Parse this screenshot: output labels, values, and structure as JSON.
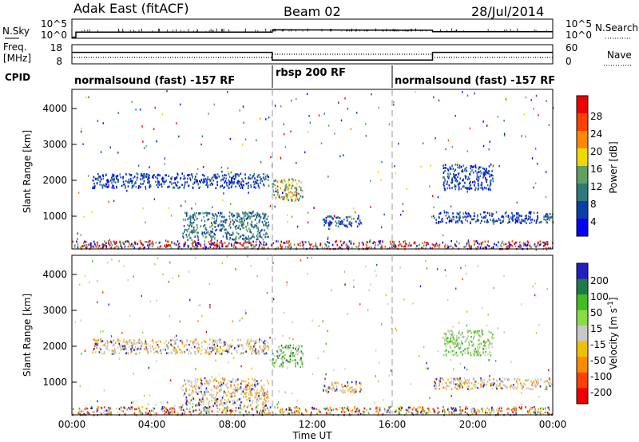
{
  "header": {
    "station": "Adak East (fitACF)",
    "beam": "Beam 02",
    "date": "28/Jul/2014"
  },
  "chart_data": [
    {
      "type": "line",
      "panel": "noise",
      "left_label": "N.Sky",
      "right_label": "N.Search",
      "left_ticks": [
        "10^5",
        "10^0"
      ],
      "right_ticks": [
        "10^5",
        "10^0"
      ],
      "y_scale": "log",
      "description_series": [
        {
          "x_hours": [
            0.0,
            0.2,
            0.2,
            10.0,
            10.0,
            18.0,
            18.0,
            24.0
          ],
          "log10_value": [
            0.3,
            0.3,
            1.6,
            1.6,
            2.2,
            2.1,
            1.7,
            1.7
          ]
        }
      ]
    },
    {
      "type": "line",
      "panel": "frequency",
      "left_label_1": "Freq.",
      "left_label_2": "[MHz]",
      "right_label": "Nave",
      "left_ticks": [
        "18",
        "8"
      ],
      "right_ticks": [
        "60",
        "0"
      ],
      "series": [
        {
          "x": [
            "00:00",
            "10:00",
            "10:00",
            "18:00",
            "18:00",
            "24:00"
          ],
          "freq_mhz": [
            14,
            14,
            10,
            10,
            14,
            14
          ]
        },
        {
          "x": [
            "00:00",
            "10:00",
            "10:00",
            "18:00",
            "18:00",
            "24:00"
          ],
          "nave": [
            20,
            20,
            30,
            30,
            20,
            20
          ]
        }
      ]
    },
    {
      "type": "table",
      "panel": "cpid",
      "label": "CPID",
      "segments": [
        {
          "start": "00:00",
          "end": "10:00",
          "text": "normalsound (fast) -157 RF"
        },
        {
          "start": "10:00",
          "end": "16:00",
          "text": "rbsp 200 RF"
        },
        {
          "start": "16:00",
          "end": "24:00",
          "text": "normalsound (fast) -157 RF"
        }
      ]
    },
    {
      "type": "heatmap",
      "panel": "power",
      "ylabel": "Slant Range [km]",
      "y_ticks": [
        "1000",
        "2000",
        "3000",
        "4000"
      ],
      "ylim": [
        180,
        4500
      ],
      "colorbar_label": "Power [dB]",
      "colorbar_ticks": [
        "4",
        "8",
        "12",
        "16",
        "20",
        "24",
        "28"
      ],
      "colorbar_colors": [
        "#0000ff",
        "#0a3fa8",
        "#2d7a7a",
        "#60a060",
        "#f0d800",
        "#ff8800",
        "#ff4000",
        "#ee0000"
      ],
      "regions": [
        {
          "t0": 1.0,
          "t1": 9.8,
          "r0": 1850,
          "r1": 2250,
          "class": 1
        },
        {
          "t0": 5.5,
          "t1": 9.8,
          "r0": 450,
          "r1": 1200,
          "class": 2
        },
        {
          "t0": 10.0,
          "t1": 11.5,
          "r0": 1500,
          "r1": 2100,
          "class": 3
        },
        {
          "t0": 12.5,
          "t1": 14.5,
          "r0": 800,
          "r1": 1100,
          "class": 1
        },
        {
          "t0": 18.0,
          "t1": 24.0,
          "r0": 900,
          "r1": 1200,
          "class": 1
        },
        {
          "t0": 18.5,
          "t1": 21.0,
          "r0": 1800,
          "r1": 2500,
          "class": 1
        },
        {
          "t0": 0.0,
          "t1": 24.0,
          "r0": 200,
          "r1": 420,
          "class": 4
        }
      ]
    },
    {
      "type": "heatmap",
      "panel": "velocity",
      "ylabel": "Slant Range [km]",
      "y_ticks": [
        "1000",
        "2000",
        "3000",
        "4000"
      ],
      "ylim": [
        180,
        4500
      ],
      "colorbar_label": "Velocity [m s",
      "colorbar_label_sup": "-1",
      "colorbar_label_end": "]",
      "colorbar_ticks": [
        "200",
        "100",
        "50",
        "15",
        "-15",
        "-50",
        "-100",
        "-200"
      ],
      "colorbar_colors": [
        "#2020c0",
        "#1e7a4a",
        "#44bb22",
        "#88dd44",
        "#c8c8c8",
        "#f0c000",
        "#ff8800",
        "#ff4000",
        "#ee0000"
      ],
      "regions": [
        {
          "t0": 1.0,
          "t1": 9.8,
          "r0": 1850,
          "r1": 2250,
          "class": 4
        },
        {
          "t0": 5.5,
          "t1": 9.8,
          "r0": 450,
          "r1": 1200,
          "class": 4
        },
        {
          "t0": 10.0,
          "t1": 11.5,
          "r0": 1500,
          "r1": 2100,
          "class": 2
        },
        {
          "t0": 12.5,
          "t1": 14.5,
          "r0": 800,
          "r1": 1100,
          "class": 4
        },
        {
          "t0": 18.0,
          "t1": 24.0,
          "r0": 900,
          "r1": 1200,
          "class": 4
        },
        {
          "t0": 18.5,
          "t1": 21.0,
          "r0": 1800,
          "r1": 2500,
          "class": 3
        },
        {
          "t0": 0.0,
          "t1": 24.0,
          "r0": 200,
          "r1": 420,
          "class": 5
        }
      ]
    }
  ],
  "x_axis": {
    "label": "Time UT",
    "ticks": [
      "00:00",
      "04:00",
      "08:00",
      "12:00",
      "16:00",
      "20:00",
      "00:00"
    ]
  }
}
